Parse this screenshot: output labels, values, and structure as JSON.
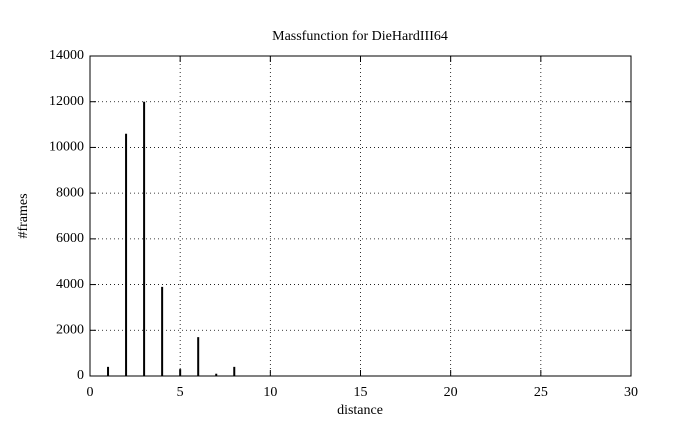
{
  "chart_data": {
    "type": "impulse",
    "title": "Massfunction for DieHardIII64",
    "x_label": "distance",
    "y_label": "#frames",
    "x": [
      1,
      2,
      3,
      4,
      5,
      6,
      7,
      8
    ],
    "values": [
      400,
      10600,
      12000,
      3900,
      300,
      1700,
      100,
      400
    ],
    "color": "#000000",
    "xlim": [
      0,
      30
    ],
    "xticks": [
      0,
      5,
      10,
      15,
      20,
      25,
      30
    ],
    "ylim": [
      0,
      14000
    ],
    "yticks": [
      0,
      2000,
      4000,
      6000,
      8000,
      10000,
      12000,
      14000
    ],
    "grid": true
  }
}
